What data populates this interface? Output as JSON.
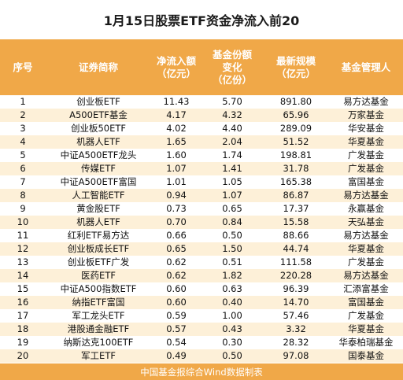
{
  "title": "1月15日股票ETF资金净流入前20",
  "headers": [
    "序号",
    "证券简称",
    "净流入额\n（亿元）",
    "基金份额\n变化\n（亿份）",
    "最新规模\n（亿元）",
    "基金管理人"
  ],
  "rows": [
    [
      "1",
      "创业板ETF",
      "11.43",
      "5.70",
      "891.80",
      "易方达基金"
    ],
    [
      "2",
      "A500ETF基金",
      "4.17",
      "4.32",
      "65.96",
      "万家基金"
    ],
    [
      "3",
      "创业板50ETF",
      "4.02",
      "4.40",
      "289.09",
      "华安基金"
    ],
    [
      "4",
      "机器人ETF",
      "1.65",
      "2.04",
      "51.52",
      "华夏基金"
    ],
    [
      "5",
      "中证A500ETF龙头",
      "1.60",
      "1.74",
      "198.81",
      "广发基金"
    ],
    [
      "6",
      "传媒ETF",
      "1.07",
      "1.41",
      "31.78",
      "广发基金"
    ],
    [
      "7",
      "中证A500ETF富国",
      "1.01",
      "1.05",
      "165.38",
      "富国基金"
    ],
    [
      "8",
      "人工智能ETF",
      "0.94",
      "1.07",
      "86.87",
      "易方达基金"
    ],
    [
      "9",
      "黄金股ETF",
      "0.73",
      "0.65",
      "17.37",
      "永赢基金"
    ],
    [
      "10",
      "机器人ETF",
      "0.70",
      "0.84",
      "15.58",
      "天弘基金"
    ],
    [
      "11",
      "红利ETF易方达",
      "0.66",
      "0.50",
      "88.66",
      "易方达基金"
    ],
    [
      "12",
      "创业板成长ETF",
      "0.65",
      "1.50",
      "44.74",
      "华夏基金"
    ],
    [
      "13",
      "创业板ETF广发",
      "0.62",
      "0.51",
      "111.58",
      "广发基金"
    ],
    [
      "14",
      "医药ETF",
      "0.62",
      "1.82",
      "220.28",
      "易方达基金"
    ],
    [
      "15",
      "中证A500指数ETF",
      "0.60",
      "0.63",
      "96.39",
      "汇添富基金"
    ],
    [
      "16",
      "纳指ETF富国",
      "0.60",
      "0.40",
      "14.70",
      "富国基金"
    ],
    [
      "17",
      "军工龙头ETF",
      "0.59",
      "1.00",
      "57.46",
      "广发基金"
    ],
    [
      "18",
      "港股通金融ETF",
      "0.57",
      "0.43",
      "3.32",
      "华夏基金"
    ],
    [
      "19",
      "纳斯达克100ETF",
      "0.54",
      "0.30",
      "28.32",
      "华泰柏瑞基金"
    ],
    [
      "20",
      "军工ETF",
      "0.49",
      "0.50",
      "97.08",
      "国泰基金"
    ]
  ],
  "footer": "中国基金报综合Wind数据制表",
  "colors": {
    "header_bg": "#f0a848",
    "alt_row_bg": "#fdf0d8",
    "header_text": "#ffffff"
  }
}
